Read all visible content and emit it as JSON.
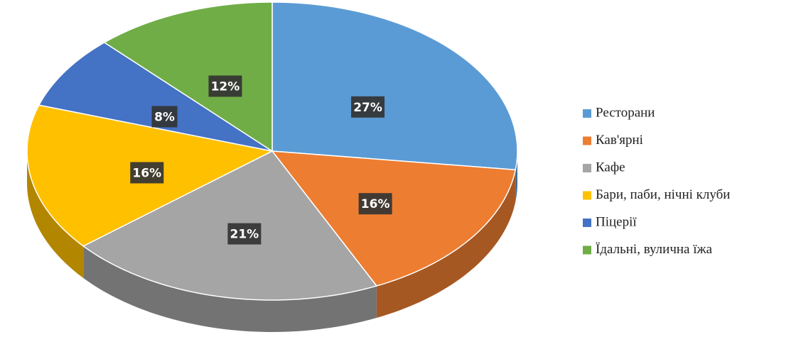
{
  "chart_data": {
    "type": "pie",
    "categories": [
      "Ресторани",
      "Кав'ярні",
      "Кафе",
      "Бари, паби, нічні  клуби",
      "Піцерії",
      "Їдальні, вулична їжа"
    ],
    "values": [
      27,
      16,
      21,
      16,
      8,
      12
    ],
    "value_labels": [
      "27%",
      "16%",
      "21%",
      "16%",
      "8%",
      "12%"
    ],
    "colors": [
      "#5b9bd5",
      "#ed7d31",
      "#a5a5a5",
      "#ffc000",
      "#4472c4",
      "#70ad47"
    ],
    "legend": "right"
  }
}
